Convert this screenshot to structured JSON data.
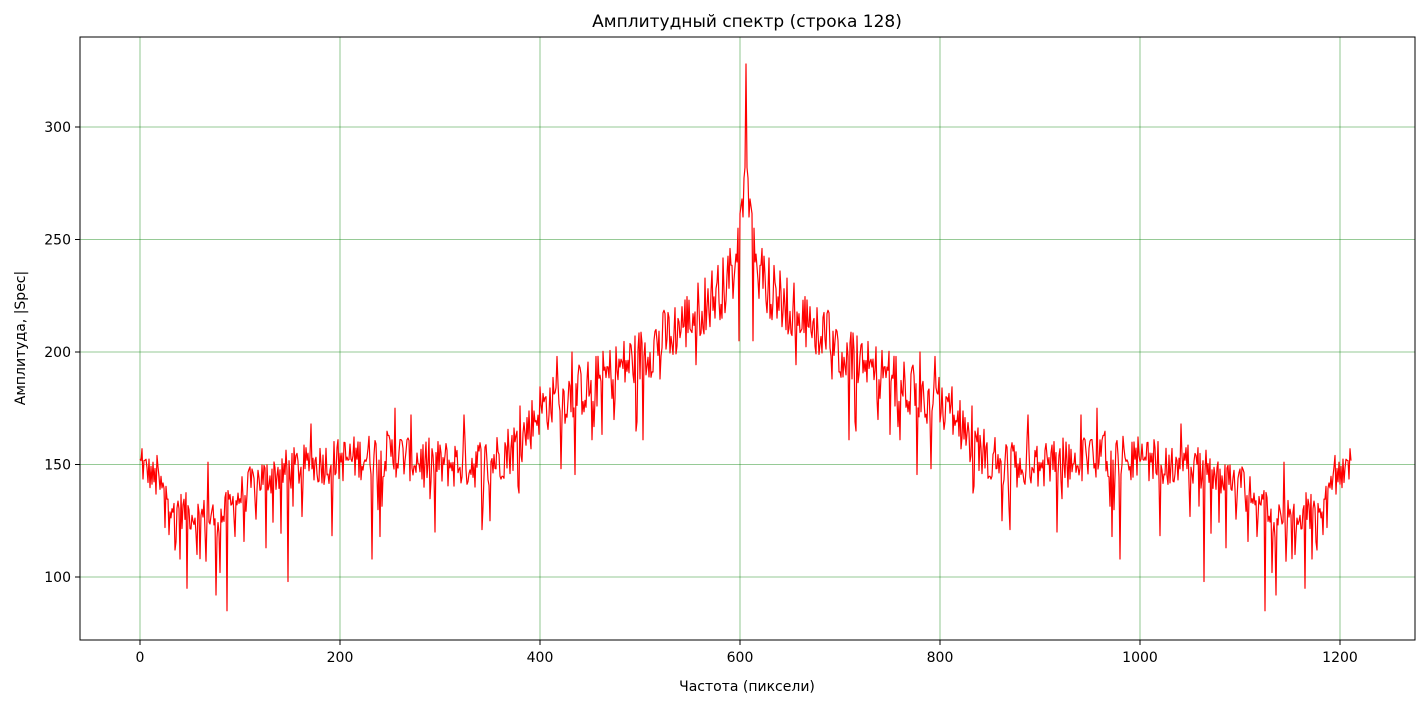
{
  "chart_data": {
    "type": "line",
    "title": "Амплитудный спектр (строка 128)",
    "xlabel": "Частота (пиксели)",
    "ylabel": "Амплитуда, |Spec|",
    "xlim": [
      -60,
      1275
    ],
    "ylim": [
      72,
      340
    ],
    "xticks": [
      0,
      200,
      400,
      600,
      800,
      1000,
      1200
    ],
    "xtick_labels": [
      "0",
      "200",
      "400",
      "600",
      "800",
      "1000",
      "1200"
    ],
    "yticks": [
      100,
      150,
      200,
      250,
      300
    ],
    "ytick_labels": [
      "100",
      "150",
      "200",
      "250",
      "300"
    ],
    "grid": true,
    "grid_color": "#008000",
    "line_color": "#ff0000",
    "legend": "none",
    "series": [
      {
        "n_points": 1212,
        "center": 606,
        "symmetric": true,
        "peak": {
          "x": 606,
          "y": 328
        },
        "envelope": [
          [
            0,
            150
          ],
          [
            10,
            146
          ],
          [
            20,
            140
          ],
          [
            40,
            130
          ],
          [
            60,
            127
          ],
          [
            80,
            126
          ],
          [
            100,
            136
          ],
          [
            120,
            144
          ],
          [
            150,
            148
          ],
          [
            200,
            152
          ],
          [
            250,
            155
          ],
          [
            300,
            150
          ],
          [
            350,
            151
          ],
          [
            380,
            160
          ],
          [
            400,
            175
          ],
          [
            450,
            185
          ],
          [
            500,
            198
          ],
          [
            550,
            215
          ],
          [
            580,
            228
          ],
          [
            594,
            232
          ],
          [
            598,
            255
          ],
          [
            602,
            268
          ],
          [
            605,
            282
          ],
          [
            606,
            328
          ]
        ],
        "dips": [
          [
            8,
            142
          ],
          [
            25,
            122
          ],
          [
            35,
            112
          ],
          [
            40,
            108
          ],
          [
            47,
            95
          ],
          [
            57,
            110
          ],
          [
            66,
            107
          ],
          [
            76,
            92
          ],
          [
            80,
            102
          ],
          [
            87,
            85
          ],
          [
            95,
            118
          ],
          [
            126,
            113
          ],
          [
            148,
            98
          ],
          [
            232,
            108
          ],
          [
            240,
            118
          ],
          [
            295,
            120
          ],
          [
            350,
            125
          ],
          [
            452,
            161
          ],
          [
            503,
            161
          ],
          [
            520,
            188
          ],
          [
            599,
            205
          ]
        ],
        "spikes": [
          [
            2,
            157
          ],
          [
            17,
            154
          ],
          [
            68,
            151
          ],
          [
            171,
            168
          ],
          [
            255,
            175
          ],
          [
            271,
            172
          ],
          [
            324,
            172
          ],
          [
            380,
            176
          ],
          [
            417,
            198
          ],
          [
            432,
            200
          ],
          [
            516,
            210
          ],
          [
            590,
            246
          ],
          [
            597,
            240
          ],
          [
            603,
            260
          ]
        ]
      }
    ]
  }
}
